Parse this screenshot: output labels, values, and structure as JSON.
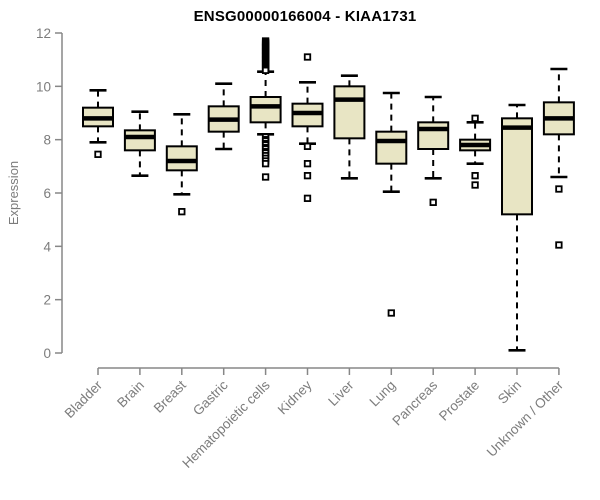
{
  "title": "ENSG00000166004 - KIAA1731",
  "colors": {
    "box_fill": "#E8E5C4",
    "line": "#000000",
    "axis": "#878787",
    "label": "#7C7C7C",
    "title": "#000000",
    "background": "#FFFFFF"
  },
  "chart_data": {
    "type": "boxplot",
    "title": "ENSG00000166004 - KIAA1731",
    "xlabel": "",
    "ylabel": "Expression",
    "ylim": [
      0,
      12
    ],
    "yticks": [
      0,
      2,
      4,
      6,
      8,
      10,
      12
    ],
    "grid": false,
    "categories": [
      "Bladder",
      "Brain",
      "Breast",
      "Gastric",
      "Hematopoietic cells",
      "Kidney",
      "Liver",
      "Lung",
      "Pancreas",
      "Prostate",
      "Skin",
      "Unknown / Other"
    ],
    "boxes": [
      {
        "category": "Bladder",
        "whisker_low": 7.9,
        "q1": 8.5,
        "median": 8.8,
        "q3": 9.2,
        "whisker_high": 9.85,
        "outliers": [
          7.45
        ]
      },
      {
        "category": "Brain",
        "whisker_low": 6.65,
        "q1": 7.6,
        "median": 8.1,
        "q3": 8.35,
        "whisker_high": 9.05,
        "outliers": []
      },
      {
        "category": "Breast",
        "whisker_low": 5.95,
        "q1": 6.85,
        "median": 7.2,
        "q3": 7.75,
        "whisker_high": 8.95,
        "outliers": [
          5.3
        ]
      },
      {
        "category": "Gastric",
        "whisker_low": 7.65,
        "q1": 8.3,
        "median": 8.75,
        "q3": 9.25,
        "whisker_high": 10.1,
        "outliers": []
      },
      {
        "category": "Hematopoietic cells",
        "whisker_low": 8.2,
        "q1": 8.65,
        "median": 9.25,
        "q3": 9.6,
        "whisker_high": 10.55,
        "outliers": [
          11.7,
          11.65,
          11.6,
          11.55,
          11.5,
          11.45,
          11.4,
          11.35,
          11.3,
          11.25,
          11.2,
          11.15,
          11.1,
          11.05,
          11.0,
          10.95,
          10.9,
          10.85,
          10.8,
          10.75,
          10.7,
          10.65,
          10.6,
          8.1,
          8.0,
          7.95,
          7.85,
          7.8,
          7.7,
          7.65,
          7.55,
          7.5,
          7.4,
          7.3,
          7.2,
          7.1,
          6.6
        ]
      },
      {
        "category": "Kidney",
        "whisker_low": 7.85,
        "q1": 8.5,
        "median": 9.0,
        "q3": 9.35,
        "whisker_high": 10.15,
        "outliers": [
          11.1,
          7.75,
          7.1,
          6.65,
          5.8
        ]
      },
      {
        "category": "Liver",
        "whisker_low": 6.55,
        "q1": 8.05,
        "median": 9.5,
        "q3": 10.0,
        "whisker_high": 10.4,
        "outliers": []
      },
      {
        "category": "Lung",
        "whisker_low": 6.05,
        "q1": 7.1,
        "median": 7.95,
        "q3": 8.3,
        "whisker_high": 9.75,
        "outliers": [
          1.5
        ]
      },
      {
        "category": "Pancreas",
        "whisker_low": 6.55,
        "q1": 7.65,
        "median": 8.4,
        "q3": 8.65,
        "whisker_high": 9.6,
        "outliers": [
          5.65
        ]
      },
      {
        "category": "Prostate",
        "whisker_low": 7.1,
        "q1": 7.6,
        "median": 7.8,
        "q3": 8.0,
        "whisker_high": 8.65,
        "outliers": [
          8.8,
          6.65,
          6.3
        ]
      },
      {
        "category": "Skin",
        "whisker_low": 0.1,
        "q1": 5.2,
        "median": 8.45,
        "q3": 8.8,
        "whisker_high": 9.3,
        "outliers": []
      },
      {
        "category": "Unknown / Other",
        "whisker_low": 6.6,
        "q1": 8.2,
        "median": 8.8,
        "q3": 9.4,
        "whisker_high": 10.65,
        "outliers": [
          6.15,
          4.05
        ]
      }
    ]
  }
}
